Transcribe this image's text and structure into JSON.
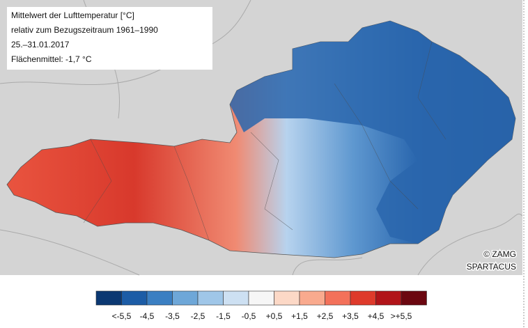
{
  "info_box": {
    "lines": [
      "Mittelwert der Lufttemperatur [°C]",
      "relativ zum Bezugszeitraum 1961–1990",
      "25.–31.01.2017",
      "Flächenmittel: -1,7 °C"
    ]
  },
  "credits": [
    "© ZAMG",
    "SPARTACUS"
  ],
  "legend": {
    "colors": [
      "#0b3872",
      "#1c5ca6",
      "#3b7fc2",
      "#6ea7d8",
      "#9fc6e8",
      "#cde0f2",
      "#f6f6f6",
      "#fcd8c6",
      "#f9aa8e",
      "#f3715a",
      "#de3a2b",
      "#b11419",
      "#6b0710"
    ],
    "labels": [
      "<-5,5",
      "-4,5",
      "-3,5",
      "-2,5",
      "-1,5",
      "-0,5",
      "+0,5",
      "+1,5",
      "+2,5",
      "+3,5",
      "+4,5",
      ">+5,5"
    ]
  }
}
